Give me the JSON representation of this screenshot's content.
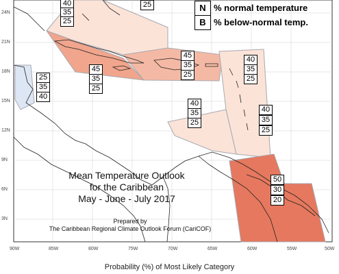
{
  "legend": {
    "normal_key": "N",
    "normal_text": "% normal temperature",
    "below_key": "B",
    "below_text": "% below-normal temp."
  },
  "latitude_labels": [
    "24N",
    "21N",
    "18N",
    "15N",
    "12N",
    "9N",
    "6N",
    "3N"
  ],
  "longitude_labels": [
    "90W",
    "85W",
    "80W",
    "75W",
    "70W",
    "65W",
    "60W",
    "55W",
    "50W"
  ],
  "regions": [
    {
      "name": "bahamas",
      "values": [
        "40",
        "35",
        "25"
      ]
    },
    {
      "name": "cuba-top",
      "values": [
        "25"
      ]
    },
    {
      "name": "yucatan-belize",
      "values": [
        "25",
        "35",
        "40"
      ]
    },
    {
      "name": "jamaica-cuba",
      "values": [
        "45",
        "35",
        "25"
      ]
    },
    {
      "name": "hispaniola-pr",
      "values": [
        "45",
        "35",
        "25"
      ]
    },
    {
      "name": "lesser-antilles-north",
      "values": [
        "40",
        "35",
        "25"
      ]
    },
    {
      "name": "caribbean-sea",
      "values": [
        "40",
        "35",
        "25"
      ]
    },
    {
      "name": "lesser-antilles-south",
      "values": [
        "40",
        "35",
        "25"
      ]
    },
    {
      "name": "guianas",
      "values": [
        "50",
        "30",
        "20"
      ]
    }
  ],
  "title": {
    "line1": "Mean Temperature Outlook",
    "line2": "for the Caribbean",
    "line3": "May - June - July 2017"
  },
  "prepared": {
    "line1": "Prepared by",
    "line2": "The Caribbean Regional Climate Outlook Forum (CariCOF)"
  },
  "caption": "Probability (%) of Most Likely Category",
  "colors": {
    "light_peach": "#fbe3d8",
    "peach": "#f4b9a4",
    "salmon": "#f0a58c",
    "dark_salmon": "#e5785e",
    "light_blue": "#dde6f4",
    "outline": "#a8a8b0"
  }
}
